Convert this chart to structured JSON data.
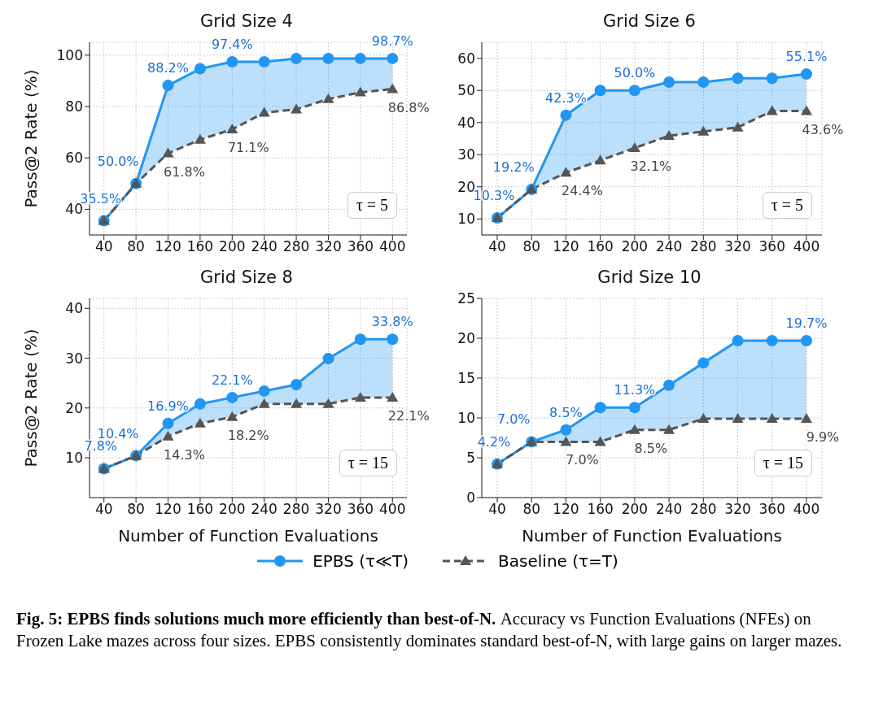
{
  "chart_data": [
    {
      "type": "line",
      "title": "Grid Size 4",
      "ylabel": "Pass@2 Rate (%)",
      "x": [
        40,
        80,
        120,
        160,
        200,
        240,
        280,
        320,
        360,
        400
      ],
      "xlim": [
        22,
        418
      ],
      "xticks": [
        40,
        80,
        120,
        160,
        200,
        240,
        280,
        320,
        360,
        400
      ],
      "ylim": [
        30,
        105
      ],
      "yticks": [
        40,
        60,
        80,
        100
      ],
      "grid": true,
      "legend": false,
      "annotations": [
        "τ = 5"
      ],
      "series": [
        {
          "color": "#2196f3",
          "marker": "circle",
          "line_style": "solid",
          "values": [
            35.5,
            50.0,
            88.2,
            94.7,
            97.4,
            97.4,
            98.7,
            98.7,
            98.7,
            98.7
          ],
          "lower": [
            35.5,
            50.0,
            61.8,
            67.1,
            71.1,
            77.6,
            78.9,
            82.9,
            85.5,
            86.8
          ],
          "upper": [
            35.5,
            50.0,
            88.2,
            94.7,
            97.4,
            97.4,
            98.7,
            98.7,
            98.7,
            98.7
          ],
          "value_labels": [
            "35.5%",
            "50.0%",
            "88.2%",
            null,
            "97.4%",
            null,
            null,
            null,
            null,
            "98.7%"
          ]
        },
        {
          "color": "#555555",
          "marker": "triangle",
          "line_style": "dashed",
          "values": [
            35.5,
            50.0,
            61.8,
            67.1,
            71.1,
            77.6,
            78.9,
            82.9,
            85.5,
            86.8
          ],
          "value_labels": [
            null,
            null,
            "61.8%",
            null,
            "71.1%",
            null,
            null,
            null,
            null,
            "86.8%"
          ]
        }
      ]
    },
    {
      "type": "line",
      "title": "Grid Size 6",
      "x": [
        40,
        80,
        120,
        160,
        200,
        240,
        280,
        320,
        360,
        400
      ],
      "xlim": [
        22,
        418
      ],
      "xticks": [
        40,
        80,
        120,
        160,
        200,
        240,
        280,
        320,
        360,
        400
      ],
      "ylim": [
        5,
        65
      ],
      "yticks": [
        10,
        20,
        30,
        40,
        50,
        60
      ],
      "grid": true,
      "legend": false,
      "annotations": [
        "τ = 5"
      ],
      "series": [
        {
          "color": "#2196f3",
          "marker": "circle",
          "line_style": "solid",
          "values": [
            10.3,
            19.2,
            42.3,
            50.0,
            50.0,
            52.6,
            52.6,
            53.8,
            53.8,
            55.1
          ],
          "lower": [
            10.3,
            19.2,
            24.4,
            28.2,
            32.1,
            35.9,
            37.2,
            38.5,
            43.6,
            43.6
          ],
          "upper": [
            10.3,
            19.2,
            42.3,
            50.0,
            50.0,
            52.6,
            52.6,
            53.8,
            53.8,
            55.1
          ],
          "value_labels": [
            "10.3%",
            "19.2%",
            "42.3%",
            null,
            "50.0%",
            null,
            null,
            null,
            null,
            "55.1%"
          ]
        },
        {
          "color": "#555555",
          "marker": "triangle",
          "line_style": "dashed",
          "values": [
            10.3,
            19.2,
            24.4,
            28.2,
            32.1,
            35.9,
            37.2,
            38.5,
            43.6,
            43.6
          ],
          "value_labels": [
            null,
            null,
            "24.4%",
            null,
            "32.1%",
            null,
            null,
            null,
            null,
            "43.6%"
          ]
        }
      ]
    },
    {
      "type": "line",
      "title": "Grid Size 8",
      "xlabel": "Number of Function Evaluations",
      "ylabel": "Pass@2 Rate (%)",
      "x": [
        40,
        80,
        120,
        160,
        200,
        240,
        280,
        320,
        360,
        400
      ],
      "xlim": [
        22,
        418
      ],
      "xticks": [
        40,
        80,
        120,
        160,
        200,
        240,
        280,
        320,
        360,
        400
      ],
      "ylim": [
        2,
        42
      ],
      "yticks": [
        10,
        20,
        30,
        40
      ],
      "grid": true,
      "legend": false,
      "annotations": [
        "τ = 15"
      ],
      "series": [
        {
          "color": "#2196f3",
          "marker": "circle",
          "line_style": "solid",
          "values": [
            7.8,
            10.4,
            16.9,
            20.8,
            22.1,
            23.4,
            24.7,
            29.9,
            33.8,
            33.8
          ],
          "lower": [
            7.8,
            10.4,
            14.3,
            16.9,
            18.2,
            20.8,
            20.8,
            20.8,
            22.1,
            22.1
          ],
          "upper": [
            7.8,
            10.4,
            16.9,
            20.8,
            22.1,
            23.4,
            24.7,
            29.9,
            33.8,
            33.8
          ],
          "value_labels": [
            "7.8%",
            "10.4%",
            "16.9%",
            null,
            "22.1%",
            null,
            null,
            null,
            null,
            "33.8%"
          ]
        },
        {
          "color": "#555555",
          "marker": "triangle",
          "line_style": "dashed",
          "values": [
            7.8,
            10.4,
            14.3,
            16.9,
            18.2,
            20.8,
            20.8,
            20.8,
            22.1,
            22.1
          ],
          "value_labels": [
            null,
            null,
            "14.3%",
            null,
            "18.2%",
            null,
            null,
            null,
            null,
            "22.1%"
          ]
        }
      ]
    },
    {
      "type": "line",
      "title": "Grid Size 10",
      "xlabel": "Number of Function Evaluations",
      "x": [
        40,
        80,
        120,
        160,
        200,
        240,
        280,
        320,
        360,
        400
      ],
      "xlim": [
        22,
        418
      ],
      "xticks": [
        40,
        80,
        120,
        160,
        200,
        240,
        280,
        320,
        360,
        400
      ],
      "ylim": [
        0,
        25
      ],
      "yticks": [
        0,
        5,
        10,
        15,
        20,
        25
      ],
      "grid": true,
      "legend": "bottom",
      "annotations": [
        "τ = 15",
        "Fig. 5: EPBS finds solutions much more efficiently than best-of-N.",
        "Accuracy vs Function Evaluations (NFEs) on Frozen Lake mazes across four sizes. EPBS consistently dominates standard best-of-N, with large gains on larger mazes."
      ],
      "series": [
        {
          "name": "EPBS (τ≪T)",
          "color": "#2196f3",
          "marker": "circle",
          "line_style": "solid",
          "values": [
            4.2,
            7.0,
            8.5,
            11.3,
            11.3,
            14.1,
            16.9,
            19.7,
            19.7,
            19.7
          ],
          "lower": [
            4.2,
            7.0,
            7.0,
            7.0,
            8.5,
            8.5,
            9.9,
            9.9,
            9.9,
            9.9
          ],
          "upper": [
            4.2,
            7.0,
            8.5,
            11.3,
            11.3,
            14.1,
            16.9,
            19.7,
            19.7,
            19.7
          ],
          "value_labels": [
            "4.2%",
            "7.0%",
            "8.5%",
            null,
            "11.3%",
            null,
            null,
            null,
            null,
            "19.7%"
          ]
        },
        {
          "name": "Baseline (τ=T)",
          "color": "#555555",
          "marker": "triangle",
          "line_style": "dashed",
          "values": [
            4.2,
            7.0,
            7.0,
            7.0,
            8.5,
            8.5,
            9.9,
            9.9,
            9.9,
            9.9
          ],
          "value_labels": [
            null,
            null,
            "7.0%",
            null,
            "8.5%",
            null,
            null,
            null,
            null,
            "9.9%"
          ]
        }
      ]
    }
  ]
}
